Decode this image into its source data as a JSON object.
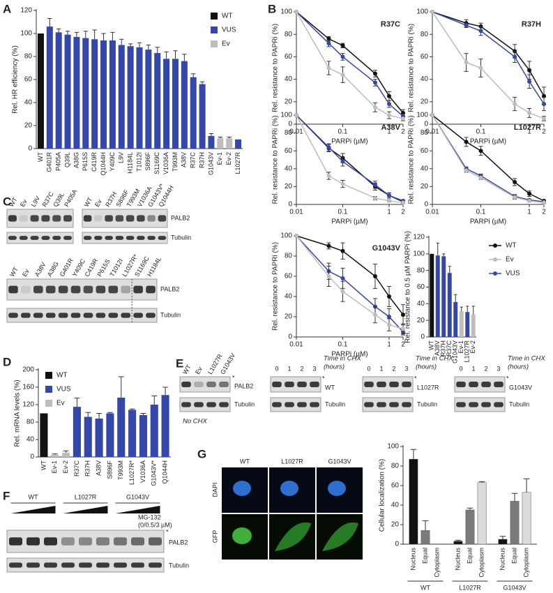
{
  "panel_labels": [
    "A",
    "B",
    "C",
    "D",
    "E",
    "F",
    "G"
  ],
  "chart_data": [
    {
      "type": "bar",
      "categories": [
        "WT",
        "G401R",
        "P405A",
        "Q39L",
        "A38G",
        "P615S",
        "C419R",
        "Q1044H",
        "Y409C",
        "L9V",
        "H1184L",
        "T1012I",
        "S896F",
        "S1169C",
        "V1036A",
        "T993M",
        "A38V",
        "R37C",
        "R37H",
        "G1043V",
        "Ev-1",
        "Ev-2",
        "L1027R"
      ],
      "values": [
        100,
        106,
        101,
        99,
        97,
        96,
        95,
        94,
        94,
        90,
        89,
        88,
        86,
        83,
        78,
        78,
        76,
        62,
        56,
        11,
        9,
        9,
        8
      ],
      "errors": [
        0,
        7,
        3,
        3,
        4,
        6,
        8,
        6,
        7,
        5,
        2,
        4,
        4,
        5,
        6,
        7,
        6,
        3,
        2,
        2,
        1,
        1,
        0
      ],
      "colors": [
        "#111111",
        "#3547a8",
        "#3547a8",
        "#3547a8",
        "#3547a8",
        "#3547a8",
        "#3547a8",
        "#3547a8",
        "#3547a8",
        "#3547a8",
        "#3547a8",
        "#3547a8",
        "#3547a8",
        "#3547a8",
        "#3547a8",
        "#3547a8",
        "#3547a8",
        "#3547a8",
        "#3547a8",
        "#3547a8",
        "#bdbdbd",
        "#bdbdbd",
        "#3547a8"
      ],
      "ylim": [
        0,
        120
      ],
      "yticks": [
        0,
        20,
        40,
        60,
        80,
        100,
        120
      ],
      "ylabel": "Rel. HR efficiency (%)",
      "legend": [
        {
          "name": "WT",
          "color": "#111111"
        },
        {
          "name": "VUS",
          "color": "#3547a8"
        },
        {
          "name": "Ev",
          "color": "#bdbdbd"
        }
      ],
      "legend_corner": "upper right"
    },
    {
      "type": "line",
      "title": "R37C",
      "x": [
        0.01,
        0.05,
        0.1,
        0.5,
        1,
        2
      ],
      "xscale": "log",
      "xlim": [
        0.01,
        2
      ],
      "xticks": [
        0.01,
        0.1,
        1,
        2
      ],
      "ylim": [
        0,
        100
      ],
      "yticks": [
        0,
        20,
        40,
        60,
        80,
        100
      ],
      "xlabel": "PARPi (µM)",
      "ylabel": "Rel. resistance to PAPRi (%)",
      "series": [
        {
          "color": "#111111",
          "values": [
            100,
            76,
            70,
            45,
            25,
            10
          ],
          "errors": [
            0,
            2,
            2,
            3,
            4,
            3
          ]
        },
        {
          "color": "#3547a8",
          "values": [
            100,
            72,
            60,
            37,
            18,
            7
          ],
          "errors": [
            0,
            3,
            3,
            3,
            3,
            2
          ]
        },
        {
          "color": "#bdbdbd",
          "values": [
            100,
            50,
            44,
            15,
            8,
            5
          ],
          "errors": [
            0,
            6,
            7,
            4,
            3,
            2
          ]
        }
      ]
    },
    {
      "type": "line",
      "title": "R37H",
      "x": [
        0.01,
        0.05,
        0.1,
        0.5,
        1,
        2
      ],
      "xscale": "log",
      "xlim": [
        0.01,
        2
      ],
      "xticks": [
        0.01,
        0.1,
        1,
        2
      ],
      "ylim": [
        0,
        100
      ],
      "yticks": [
        0,
        20,
        40,
        60,
        80,
        100
      ],
      "xlabel": "PARPi (µM)",
      "ylabel": "Rel. resistance to PAPRi (%)",
      "series": [
        {
          "color": "#111111",
          "values": [
            100,
            90,
            87,
            65,
            48,
            25
          ],
          "errors": [
            0,
            3,
            3,
            6,
            8,
            8
          ]
        },
        {
          "color": "#3547a8",
          "values": [
            100,
            88,
            83,
            60,
            38,
            18
          ],
          "errors": [
            0,
            2,
            4,
            5,
            6,
            6
          ]
        },
        {
          "color": "#bdbdbd",
          "values": [
            100,
            55,
            50,
            18,
            10,
            5
          ],
          "errors": [
            0,
            8,
            8,
            6,
            4,
            2
          ]
        }
      ]
    },
    {
      "type": "line",
      "title": "A38V",
      "x": [
        0.01,
        0.05,
        0.1,
        0.5,
        1,
        2
      ],
      "xscale": "log",
      "xlim": [
        0.01,
        2
      ],
      "xticks": [
        0.01,
        0.1,
        1,
        2
      ],
      "ylim": [
        0,
        100
      ],
      "yticks": [
        0,
        20,
        40,
        60,
        80,
        100
      ],
      "xlabel": "PARPi (µM)",
      "ylabel": "Rel. resistance to PAPRi (%)",
      "series": [
        {
          "color": "#111111",
          "values": [
            100,
            63,
            52,
            20,
            10,
            3
          ],
          "errors": [
            0,
            4,
            5,
            4,
            3,
            1
          ]
        },
        {
          "color": "#3547a8",
          "values": [
            100,
            64,
            48,
            22,
            10,
            4
          ],
          "errors": [
            0,
            4,
            5,
            4,
            3,
            1
          ]
        },
        {
          "color": "#bdbdbd",
          "values": [
            100,
            32,
            23,
            7,
            4,
            2
          ],
          "errors": [
            0,
            4,
            4,
            2,
            1,
            1
          ]
        }
      ]
    },
    {
      "type": "line",
      "title": "L1027R",
      "x": [
        0.01,
        0.05,
        0.1,
        0.5,
        1,
        2
      ],
      "xscale": "log",
      "xlim": [
        0.01,
        2
      ],
      "xticks": [
        0.01,
        0.1,
        1,
        2
      ],
      "ylim": [
        0,
        100
      ],
      "yticks": [
        0,
        20,
        40,
        60,
        80,
        100
      ],
      "xlabel": "PARPi (µM)",
      "ylabel": "Rel. resistance to PAPRi (%)",
      "series": [
        {
          "color": "#111111",
          "values": [
            100,
            70,
            60,
            25,
            12,
            4
          ],
          "errors": [
            0,
            5,
            5,
            4,
            3,
            1
          ]
        },
        {
          "color": "#3547a8",
          "values": [
            100,
            40,
            32,
            9,
            5,
            3
          ],
          "errors": [
            0,
            2,
            2,
            2,
            1,
            1
          ]
        },
        {
          "color": "#bdbdbd",
          "values": [
            100,
            38,
            30,
            8,
            4,
            2
          ],
          "errors": [
            0,
            2,
            2,
            2,
            1,
            1
          ]
        }
      ]
    },
    {
      "type": "line",
      "title": "G1043V",
      "x": [
        0.01,
        0.05,
        0.1,
        0.5,
        1,
        2
      ],
      "xscale": "log",
      "xlim": [
        0.01,
        2
      ],
      "xticks": [
        0.01,
        0.1,
        1,
        2
      ],
      "ylim": [
        0,
        100
      ],
      "yticks": [
        0,
        20,
        40,
        60,
        80,
        100
      ],
      "xlabel": "PARPi (µM)",
      "ylabel": "Rel. resistance to PAPRi (%)",
      "series": [
        {
          "color": "#111111",
          "values": [
            100,
            90,
            85,
            60,
            40,
            22
          ],
          "errors": [
            0,
            3,
            8,
            12,
            10,
            10
          ]
        },
        {
          "color": "#3547a8",
          "values": [
            100,
            65,
            58,
            30,
            20,
            5
          ],
          "errors": [
            0,
            8,
            10,
            8,
            8,
            3
          ]
        },
        {
          "color": "#bdbdbd",
          "values": [
            100,
            60,
            45,
            22,
            12,
            8
          ],
          "errors": [
            0,
            10,
            10,
            8,
            6,
            5
          ]
        }
      ]
    },
    {
      "type": "bar",
      "categories": [
        "WT",
        "A38V",
        "R37H",
        "R37C",
        "G1043V",
        "Ev-1",
        "L1027R",
        "Ev-2"
      ],
      "values": [
        100,
        98,
        97,
        77,
        42,
        31,
        30,
        27
      ],
      "errors": [
        0,
        15,
        3,
        8,
        9,
        5,
        7,
        10
      ],
      "colors": [
        "#111111",
        "#3547a8",
        "#3547a8",
        "#3547a8",
        "#3547a8",
        "#bdbdbd",
        "#3547a8",
        "#bdbdbd"
      ],
      "ylim": [
        0,
        120
      ],
      "yticks": [
        0,
        20,
        40,
        60,
        80,
        100,
        120
      ],
      "ylabel": "Rel. resistance to 0.5 µM PARPi (%)",
      "legend": [
        {
          "name": "WT",
          "color": "#111111"
        },
        {
          "name": "Ev",
          "color": "#bdbdbd"
        },
        {
          "name": "VUS",
          "color": "#3547a8"
        }
      ],
      "legend_corner": "right",
      "legend_marker": "line"
    },
    {
      "type": "bar",
      "categories": [
        "WT",
        "Ev-1",
        "Ev-2",
        "R37C",
        "R37H",
        "A38V",
        "S896F",
        "T993M",
        "L1027R*",
        "V1036A",
        "G1043V*",
        "Q1044H"
      ],
      "values": [
        100,
        5,
        10,
        115,
        92,
        88,
        100,
        136,
        108,
        96,
        120,
        142
      ],
      "errors": [
        0,
        2,
        4,
        20,
        10,
        12,
        2,
        48,
        2,
        4,
        20,
        18
      ],
      "colors": [
        "#111111",
        "#bdbdbd",
        "#bdbdbd",
        "#3547a8",
        "#3547a8",
        "#3547a8",
        "#3547a8",
        "#3547a8",
        "#3547a8",
        "#3547a8",
        "#3547a8",
        "#3547a8"
      ],
      "ylim": [
        0,
        200
      ],
      "yticks": [
        0,
        40,
        80,
        120,
        160,
        200
      ],
      "ylabel": "Rel. mRNA levels (%)",
      "legend": [
        {
          "name": "WT",
          "color": "#111111"
        },
        {
          "name": "VUS",
          "color": "#3547a8"
        },
        {
          "name": "Ev",
          "color": "#bdbdbd"
        }
      ],
      "legend_corner": "upper left"
    },
    {
      "type": "grouped_bar",
      "categories": [
        "WT",
        "L1027R",
        "G1043V"
      ],
      "series": [
        {
          "name": "Nucleus",
          "color": "#111111",
          "values": [
            87,
            3,
            5
          ],
          "errors": [
            10,
            1,
            3
          ]
        },
        {
          "name": "Equal",
          "color": "#7a7a7a",
          "values": [
            14,
            35,
            44
          ],
          "errors": [
            10,
            2,
            8
          ]
        },
        {
          "name": "Cytoplasm",
          "color": "#dcdcdc",
          "values": [
            0,
            63,
            53
          ],
          "errors": [
            0,
            1,
            14
          ]
        }
      ],
      "ylim": [
        0,
        100
      ],
      "yticks": [
        0,
        20,
        40,
        60,
        80,
        100
      ],
      "ylabel": "Cellular localization (%)"
    }
  ],
  "blot_c": {
    "top_left_lanes": [
      "WT",
      "Ev",
      "L9V",
      "R37C",
      "Q39L",
      "P405A"
    ],
    "top_right_lanes": [
      "WT",
      "Ev",
      "R37H",
      "S896F",
      "T993M",
      "V1036A",
      "G1043V*",
      "Q1044H"
    ],
    "bottom_lanes": [
      "WT",
      "Ev",
      "A38V",
      "A38G",
      "G401R",
      "Y409C",
      "C419R",
      "P615S",
      "T1012I",
      "L1027R*",
      "S1169C",
      "H1184L"
    ],
    "proteins": [
      "PALB2",
      "Tubulin"
    ]
  },
  "blot_e": {
    "lanes": [
      "WT",
      "Ev",
      "L1027R",
      "G1043V"
    ],
    "asterisk": "*",
    "proteins": [
      "PALB2",
      "Tubulin"
    ],
    "note": "No CHX",
    "chx": [
      {
        "times": [
          0,
          1,
          2,
          3
        ],
        "time_label": [
          "Time in CHX",
          "(hours)"
        ],
        "variant": "WT"
      },
      {
        "times": [
          0,
          1,
          2,
          3
        ],
        "time_label": [
          "Time in CHX",
          "(hours)"
        ],
        "variant": "L1027R"
      },
      {
        "times": [
          0,
          1,
          2,
          3
        ],
        "time_label": [
          "Time in CHX",
          "(hours)"
        ],
        "variant": "G1043V"
      }
    ]
  },
  "blot_f": {
    "groups": [
      "WT",
      "L1027R",
      "G1043V"
    ],
    "treatment": [
      "MG-132",
      "(0/0.5/3 µM)"
    ],
    "asterisk": "*",
    "proteins": [
      "PALB2",
      "Tubulin"
    ]
  },
  "images_g": {
    "columns": [
      "WT",
      "L1027R",
      "G1043V"
    ],
    "rows": [
      "DAPI",
      "GFP"
    ]
  }
}
